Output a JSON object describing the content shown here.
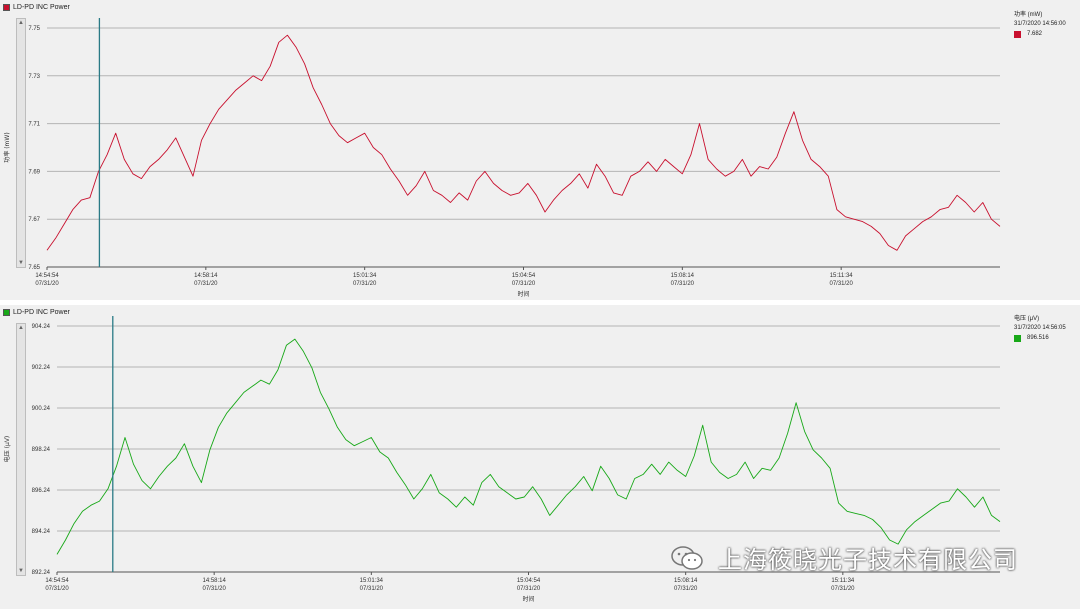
{
  "top_panel": {
    "title": "LD-PD INC Power",
    "legend_title": "功率 (mW)",
    "legend_time": "31/7/2020 14:56:00",
    "legend_value": "7.682",
    "color": "#c8102e"
  },
  "bottom_panel": {
    "title": "LD-PD INC Power",
    "legend_title": "电压 (μV)",
    "legend_time": "31/7/2020 14:56:05",
    "legend_value": "896.516",
    "color": "#18a818"
  },
  "watermark": "上海筱晓光子技术有限公司",
  "chart_data": [
    {
      "type": "line",
      "title": "LD-PD INC Power",
      "xlabel": "时间",
      "ylabel": "功率 (mW)",
      "ylim": [
        7.65,
        7.75
      ],
      "yticks": [
        "7.75",
        "7.73",
        "7.71",
        "7.69",
        "7.67",
        "7.65"
      ],
      "xticks": [
        {
          "time": "14:54:54",
          "date": "07/31/20"
        },
        {
          "time": "14:58:14",
          "date": "07/31/20"
        },
        {
          "time": "15:01:34",
          "date": "07/31/20"
        },
        {
          "time": "15:04:54",
          "date": "07/31/20"
        },
        {
          "time": "15:08:14",
          "date": "07/31/20"
        },
        {
          "time": "15:11:34",
          "date": "07/31/20"
        }
      ],
      "cursor_time": "14:56:00",
      "grid": true,
      "series": [
        {
          "name": "功率 (mW)",
          "color": "#c8102e",
          "x_start": "14:54:54",
          "x_end": "15:14:54",
          "values": [
            7.657,
            7.662,
            7.668,
            7.674,
            7.678,
            7.679,
            7.69,
            7.697,
            7.706,
            7.695,
            7.689,
            7.687,
            7.692,
            7.695,
            7.699,
            7.704,
            7.696,
            7.688,
            7.703,
            7.71,
            7.716,
            7.72,
            7.724,
            7.727,
            7.73,
            7.728,
            7.734,
            7.744,
            7.747,
            7.742,
            7.735,
            7.725,
            7.718,
            7.71,
            7.705,
            7.702,
            7.704,
            7.706,
            7.7,
            7.697,
            7.691,
            7.686,
            7.68,
            7.684,
            7.69,
            7.682,
            7.68,
            7.677,
            7.681,
            7.678,
            7.686,
            7.69,
            7.685,
            7.682,
            7.68,
            7.681,
            7.685,
            7.68,
            7.673,
            7.678,
            7.682,
            7.685,
            7.689,
            7.683,
            7.693,
            7.688,
            7.681,
            7.68,
            7.688,
            7.69,
            7.694,
            7.69,
            7.695,
            7.692,
            7.689,
            7.697,
            7.71,
            7.695,
            7.691,
            7.688,
            7.69,
            7.695,
            7.688,
            7.692,
            7.691,
            7.696,
            7.706,
            7.715,
            7.703,
            7.695,
            7.692,
            7.688,
            7.674,
            7.671,
            7.67,
            7.669,
            7.667,
            7.664,
            7.659,
            7.657,
            7.663,
            7.666,
            7.669,
            7.671,
            7.674,
            7.675,
            7.68,
            7.677,
            7.673,
            7.677,
            7.67,
            7.667
          ]
        }
      ]
    },
    {
      "type": "line",
      "title": "LD-PD INC Power",
      "xlabel": "时间",
      "ylabel": "电压 (μV)",
      "ylim": [
        892.24,
        904.24
      ],
      "yticks": [
        "904.24",
        "902.24",
        "900.24",
        "898.24",
        "896.24",
        "894.24",
        "892.24"
      ],
      "xticks": [
        {
          "time": "14:54:54",
          "date": "07/31/20"
        },
        {
          "time": "14:58:14",
          "date": "07/31/20"
        },
        {
          "time": "15:01:34",
          "date": "07/31/20"
        },
        {
          "time": "15:04:54",
          "date": "07/31/20"
        },
        {
          "time": "15:08:14",
          "date": "07/31/20"
        },
        {
          "time": "15:11:34",
          "date": "07/31/20"
        }
      ],
      "cursor_time": "14:56:05",
      "grid": true,
      "series": [
        {
          "name": "电压 (μV)",
          "color": "#18a818",
          "x_start": "14:54:54",
          "x_end": "15:14:54",
          "values": [
            893.1,
            893.8,
            894.6,
            895.2,
            895.5,
            895.7,
            896.3,
            897.4,
            898.8,
            897.5,
            896.7,
            896.3,
            896.9,
            897.4,
            897.8,
            898.5,
            897.4,
            896.6,
            898.2,
            899.3,
            900.0,
            900.5,
            901.0,
            901.3,
            901.6,
            901.4,
            902.1,
            903.3,
            903.6,
            903.0,
            902.2,
            901.0,
            900.2,
            899.3,
            898.7,
            898.4,
            898.6,
            898.8,
            898.1,
            897.8,
            897.1,
            896.5,
            895.8,
            896.3,
            897.0,
            896.1,
            895.8,
            895.4,
            895.9,
            895.5,
            896.6,
            897.0,
            896.4,
            896.1,
            895.8,
            895.9,
            896.4,
            895.8,
            895.0,
            895.5,
            896.0,
            896.4,
            896.9,
            896.2,
            897.4,
            896.8,
            896.0,
            895.8,
            896.8,
            897.0,
            897.5,
            897.0,
            897.6,
            897.2,
            896.9,
            897.9,
            899.4,
            897.6,
            897.1,
            896.8,
            897.0,
            897.6,
            896.8,
            897.3,
            897.2,
            897.8,
            899.0,
            900.5,
            899.1,
            898.2,
            897.8,
            897.3,
            895.6,
            895.2,
            895.1,
            895.0,
            894.8,
            894.4,
            893.8,
            893.6,
            894.3,
            894.7,
            895.0,
            895.3,
            895.6,
            895.7,
            896.3,
            895.9,
            895.4,
            895.9,
            895.0,
            894.7
          ]
        }
      ]
    }
  ]
}
